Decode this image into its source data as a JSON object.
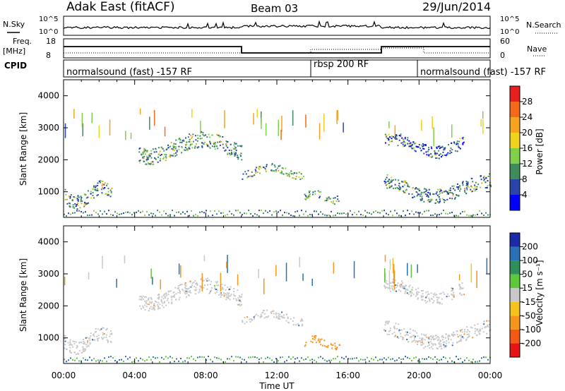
{
  "header": {
    "station": "Adak East (fitACF)",
    "beam": "Beam 03",
    "date": "29/Jun/2014"
  },
  "strips": {
    "nsky_label": "N.Sky",
    "nsearch_label": "N.Search",
    "scale_top": "10^5",
    "scale_bottom": "10^0",
    "freq_label_1": "Freq.",
    "freq_label_2": "[MHz]",
    "freq_ticks": [
      "18",
      "8"
    ],
    "nave_label": "Nave",
    "nave_ticks": [
      "60",
      "0"
    ],
    "cpid_label": "CPID"
  },
  "cpid_segments": [
    {
      "label": "normalsound (fast) -157 RF",
      "start_h": 0,
      "end_h": 14
    },
    {
      "label": "rbsp 200 RF",
      "start_h": 14,
      "end_h": 20
    },
    {
      "label": "normalsound (fast) -157 RF",
      "start_h": 20,
      "end_h": 24
    }
  ],
  "axes": {
    "ylabel": "Slant Range [km]",
    "xlabel": "Time UT",
    "x_ticks": [
      "00:00",
      "04:00",
      "08:00",
      "12:00",
      "16:00",
      "20:00",
      "00:00"
    ],
    "y_ticks": [
      "1000",
      "2000",
      "3000",
      "4000"
    ]
  },
  "colorbars": {
    "power": {
      "label": "Power [dB]",
      "ticks": [
        "4",
        "8",
        "12",
        "16",
        "20",
        "24",
        "28"
      ],
      "colors": [
        "#0000ff",
        "#2a45a8",
        "#3c8c5c",
        "#7fd04b",
        "#f2d21a",
        "#f7a21f",
        "#f46a1a",
        "#e81f1f"
      ]
    },
    "velocity": {
      "label": "Velocity [m s⁻¹]",
      "ticks": [
        "200",
        "100",
        "50",
        "15",
        "-15",
        "-50",
        "-100",
        "-200"
      ],
      "colors": [
        "#1a2aa8",
        "#2b6fb4",
        "#2f8f58",
        "#5cc83a",
        "#c8c8c8",
        "#f6c21d",
        "#f7941a",
        "#f25a14",
        "#e81414"
      ]
    }
  },
  "chart_data": [
    {
      "type": "heatmap",
      "title": "Power",
      "xlabel": "Time UT",
      "ylabel": "Slant Range [km]",
      "xlim": [
        0,
        24
      ],
      "ylim": [
        200,
        4500
      ],
      "colorbar_label": "Power [dB]",
      "colorbar_range": [
        0,
        32
      ],
      "echo_regions": [
        {
          "t_start": 0.0,
          "t_end": 2.7,
          "r_start": 400,
          "r_end": 1200,
          "value": 8
        },
        {
          "t_start": 4.2,
          "t_end": 10.0,
          "r_start": 1800,
          "r_end": 2700,
          "value": 10
        },
        {
          "t_start": 10.0,
          "t_end": 13.5,
          "r_start": 1350,
          "r_end": 1800,
          "value": 10
        },
        {
          "t_start": 13.5,
          "t_end": 15.5,
          "r_start": 600,
          "r_end": 1000,
          "value": 10
        },
        {
          "t_start": 18.0,
          "t_end": 22.5,
          "r_start": 2000,
          "r_end": 2700,
          "value": 6
        },
        {
          "t_start": 18.0,
          "t_end": 24.0,
          "r_start": 600,
          "r_end": 1400,
          "value": 8
        }
      ]
    },
    {
      "type": "heatmap",
      "title": "Velocity",
      "xlabel": "Time UT",
      "ylabel": "Slant Range [km]",
      "xlim": [
        0,
        24
      ],
      "ylim": [
        200,
        4500
      ],
      "colorbar_label": "Velocity [m s⁻¹]",
      "colorbar_range": [
        -200,
        200
      ],
      "echo_regions": [
        {
          "t_start": 0.0,
          "t_end": 2.7,
          "r_start": 400,
          "r_end": 1200,
          "value": 0
        },
        {
          "t_start": 4.2,
          "t_end": 10.0,
          "r_start": 1800,
          "r_end": 2700,
          "value": 0
        },
        {
          "t_start": 10.0,
          "t_end": 13.5,
          "r_start": 1350,
          "r_end": 1800,
          "value": 0
        },
        {
          "t_start": 13.5,
          "t_end": 15.5,
          "r_start": 600,
          "r_end": 1000,
          "value": -60
        },
        {
          "t_start": 18.0,
          "t_end": 22.5,
          "r_start": 2000,
          "r_end": 2700,
          "value": 0
        },
        {
          "t_start": 18.0,
          "t_end": 24.0,
          "r_start": 600,
          "r_end": 1400,
          "value": 0
        }
      ]
    }
  ]
}
